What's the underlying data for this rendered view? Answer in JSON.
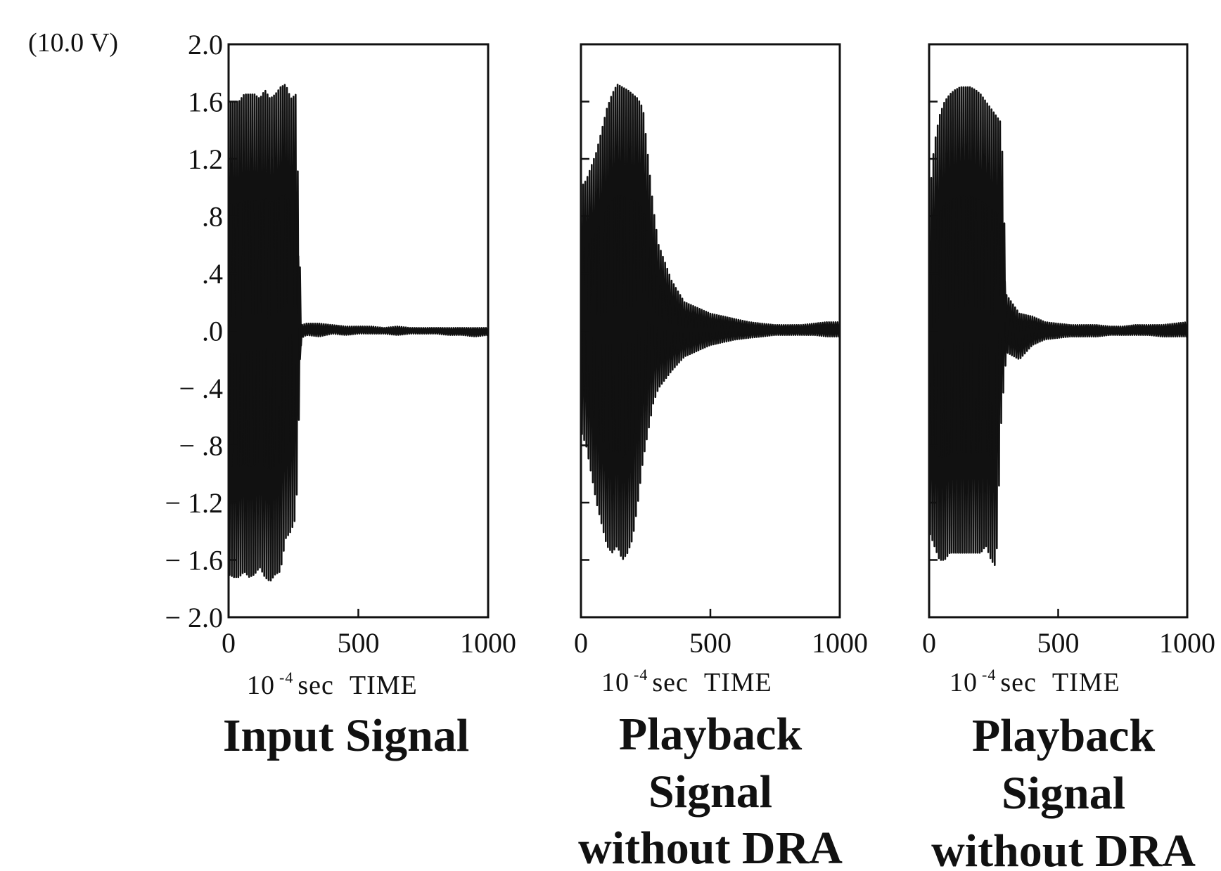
{
  "chart_data": [
    {
      "type": "line",
      "title": "Input Signal",
      "xlabel": "TIME",
      "x_unit": "10⁻⁴ sec",
      "ylabel": "",
      "y_scale_note": "(10.0 V)",
      "xlim": [
        0,
        1000
      ],
      "ylim": [
        -2.0,
        2.0
      ],
      "x_ticks": [
        "0",
        "500",
        "1000"
      ],
      "y_ticks": [
        "2.0",
        "1.6",
        "1.2",
        ".8",
        ".4",
        ".0",
        "− .4",
        "− .8",
        "− 1.2",
        "− 1.6",
        "− 2.0"
      ],
      "grid": false,
      "series": [
        {
          "x": [
            0,
            20,
            40,
            60,
            80,
            100,
            120,
            140,
            160,
            180,
            200,
            220,
            240,
            260,
            280,
            300,
            350,
            400,
            450,
            500,
            550,
            600,
            650,
            700,
            750,
            800,
            850,
            900,
            950,
            1000
          ],
          "y_max": [
            1.6,
            1.6,
            1.6,
            1.65,
            1.65,
            1.65,
            1.62,
            1.68,
            1.62,
            1.65,
            1.7,
            1.72,
            1.62,
            1.65,
            0.04,
            0.05,
            0.05,
            0.04,
            0.03,
            0.03,
            0.03,
            0.02,
            0.03,
            0.02,
            0.02,
            0.02,
            0.02,
            0.02,
            0.02,
            0.02
          ],
          "y_min": [
            -1.7,
            -1.72,
            -1.72,
            -1.68,
            -1.72,
            -1.7,
            -1.65,
            -1.72,
            -1.75,
            -1.7,
            -1.68,
            -1.45,
            -1.4,
            -1.3,
            -0.05,
            -0.03,
            -0.04,
            -0.02,
            -0.03,
            -0.02,
            -0.02,
            -0.02,
            -0.03,
            -0.02,
            -0.02,
            -0.02,
            -0.03,
            -0.03,
            -0.04,
            -0.03
          ]
        }
      ]
    },
    {
      "type": "line",
      "title": "Playback Signal without DRA",
      "xlabel": "TIME",
      "x_unit": "10⁻⁴ sec",
      "ylabel": "",
      "xlim": [
        0,
        1000
      ],
      "ylim": [
        -2.0,
        2.0
      ],
      "x_ticks": [
        "0",
        "500",
        "1000"
      ],
      "grid": false,
      "series": [
        {
          "x": [
            0,
            20,
            40,
            60,
            80,
            100,
            120,
            140,
            160,
            180,
            200,
            220,
            240,
            260,
            280,
            300,
            350,
            400,
            450,
            500,
            550,
            600,
            650,
            700,
            750,
            800,
            850,
            900,
            950,
            1000
          ],
          "y_max": [
            1.0,
            1.05,
            1.15,
            1.25,
            1.4,
            1.55,
            1.65,
            1.72,
            1.7,
            1.68,
            1.65,
            1.62,
            1.55,
            1.2,
            0.85,
            0.6,
            0.35,
            0.2,
            0.16,
            0.12,
            0.1,
            0.08,
            0.06,
            0.05,
            0.04,
            0.04,
            0.04,
            0.05,
            0.06,
            0.06
          ],
          "y_min": [
            -0.7,
            -0.8,
            -1.0,
            -1.2,
            -1.35,
            -1.5,
            -1.55,
            -1.5,
            -1.6,
            -1.55,
            -1.45,
            -1.2,
            -0.9,
            -0.7,
            -0.5,
            -0.4,
            -0.28,
            -0.18,
            -0.14,
            -0.1,
            -0.08,
            -0.06,
            -0.05,
            -0.04,
            -0.03,
            -0.03,
            -0.03,
            -0.03,
            -0.04,
            -0.04
          ]
        }
      ]
    },
    {
      "type": "line",
      "title": "Playback Signal without DRA",
      "xlabel": "TIME",
      "x_unit": "10⁻⁴ sec",
      "ylabel": "",
      "xlim": [
        0,
        1000
      ],
      "ylim": [
        -2.0,
        2.0
      ],
      "x_ticks": [
        "0",
        "500",
        "1000"
      ],
      "grid": false,
      "series": [
        {
          "x": [
            0,
            20,
            40,
            60,
            80,
            100,
            120,
            140,
            160,
            180,
            200,
            220,
            240,
            260,
            280,
            300,
            350,
            400,
            450,
            500,
            550,
            600,
            650,
            700,
            750,
            800,
            850,
            900,
            950,
            1000
          ],
          "y_max": [
            0.9,
            1.3,
            1.5,
            1.6,
            1.65,
            1.68,
            1.7,
            1.7,
            1.7,
            1.68,
            1.65,
            1.6,
            1.55,
            1.5,
            1.45,
            0.25,
            0.12,
            0.1,
            0.06,
            0.05,
            0.04,
            0.04,
            0.04,
            0.03,
            0.03,
            0.04,
            0.04,
            0.04,
            0.05,
            0.06
          ],
          "y_min": [
            -1.4,
            -1.5,
            -1.6,
            -1.6,
            -1.55,
            -1.55,
            -1.55,
            -1.55,
            -1.55,
            -1.55,
            -1.55,
            -1.5,
            -1.6,
            -1.65,
            -0.6,
            -0.15,
            -0.2,
            -0.1,
            -0.06,
            -0.05,
            -0.04,
            -0.04,
            -0.04,
            -0.03,
            -0.03,
            -0.03,
            -0.03,
            -0.04,
            -0.04,
            -0.04
          ]
        }
      ]
    }
  ],
  "captions": {
    "panel1": [
      "Input Signal"
    ],
    "panel2": [
      "Playback",
      "Signal",
      "without DRA"
    ],
    "panel3": [
      "Playback",
      "Signal",
      "without DRA"
    ]
  },
  "axis_text": {
    "unit_prefix": "10",
    "unit_exp": "-4",
    "unit_rest": "sec",
    "time_word": "TIME"
  }
}
